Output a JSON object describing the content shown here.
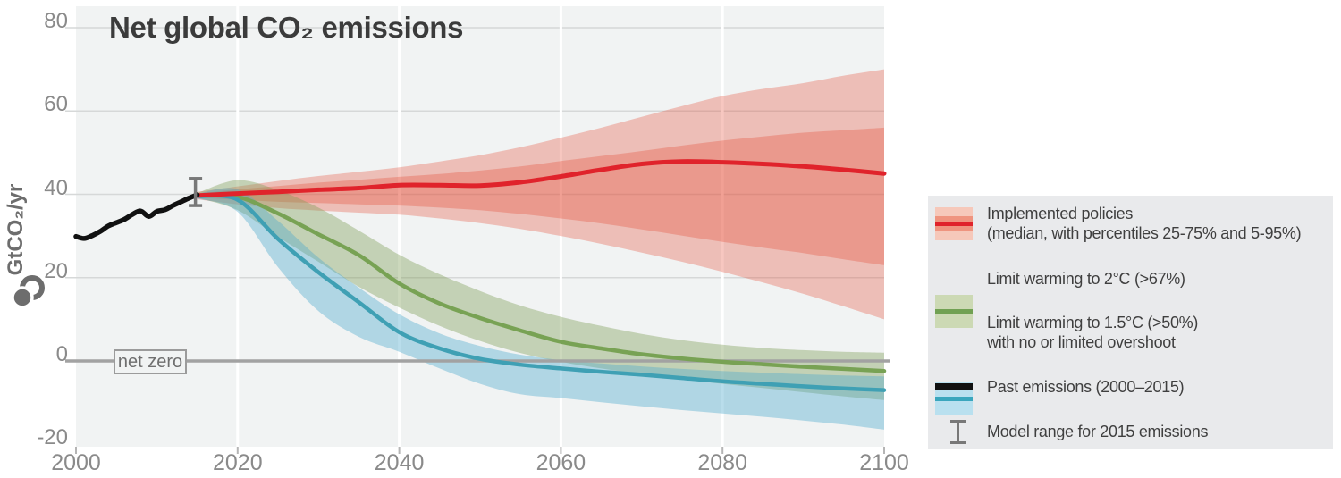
{
  "title": "Net global CO₂ emissions",
  "axes": {
    "y_label": "GtCO₂/yr",
    "y_ticks": [
      80,
      60,
      40,
      20,
      0,
      -20
    ],
    "x_ticks": [
      2000,
      2020,
      2040,
      2060,
      2080,
      2100
    ],
    "net_zero_label": "net zero"
  },
  "colors": {
    "plot_background": "#f1f3f3",
    "legend_background": "#e9eaec",
    "red_line": "#e0232b",
    "red_band": "rgba(228,70,45,0.30)",
    "green_line": "#78a254",
    "green_band": "rgba(128,158,88,0.40)",
    "blue_line": "#3fa0b4",
    "blue_band": "rgba(80,170,205,0.40)",
    "past_line": "#111111",
    "zero_line": "#a2a2a2",
    "h_grid": "#d6d8d8",
    "v_grid": "#ffffff",
    "error_bar": "#787878"
  },
  "legend": {
    "items": [
      {
        "type": "red-band",
        "line1": "Implemented policies",
        "line2": "(median, with percentiles 25-75% and 5-95%)"
      },
      {
        "type": "green-band",
        "line1": "Limit warming to 2°C (>67%)",
        "line2": ""
      },
      {
        "type": "blue-band",
        "line1": "Limit warming to 1.5°C (>50%)",
        "line2": "with no or limited overshoot"
      },
      {
        "type": "black-line",
        "line1": "Past emissions (2000–2015)",
        "line2": ""
      },
      {
        "type": "error-bar",
        "line1": "Model range for 2015 emissions",
        "line2": ""
      }
    ]
  },
  "chart_data": {
    "type": "area",
    "title": "Net global CO₂ emissions",
    "xlabel": "",
    "ylabel": "GtCO₂/yr",
    "xlim": [
      2000,
      2100
    ],
    "ylim": [
      -21,
      85
    ],
    "x_ticks": [
      2000,
      2020,
      2040,
      2060,
      2080,
      2100
    ],
    "y_ticks": [
      80,
      60,
      40,
      20,
      0,
      -20
    ],
    "grid": "horizontal gray lines, vertical white lines",
    "net_zero_line": 0,
    "past_emissions": {
      "name": "Past emissions (2000–2015)",
      "x": [
        2000,
        2001,
        2002,
        2003,
        2004,
        2005,
        2006,
        2007,
        2008,
        2009,
        2010,
        2011,
        2012,
        2013,
        2014,
        2015
      ],
      "y": [
        29.9,
        29.4,
        30.1,
        31.1,
        32.4,
        33.2,
        34.0,
        35.2,
        36.0,
        34.7,
        35.9,
        36.3,
        37.3,
        38.2,
        39.1,
        39.9
      ]
    },
    "model_range_2015": {
      "x": 2015,
      "low": 37.3,
      "high": 43.8
    },
    "scenario_years": [
      2015,
      2020,
      2025,
      2030,
      2035,
      2040,
      2045,
      2050,
      2055,
      2060,
      2065,
      2070,
      2075,
      2080,
      2085,
      2090,
      2095,
      2100
    ],
    "scenarios": [
      {
        "name": "Implemented policies (median, with percentiles 25-75% and 5-95%)",
        "color": "#e0232b",
        "median": [
          39.7,
          40.2,
          40.6,
          41.1,
          41.5,
          42.2,
          42.2,
          42.1,
          42.9,
          44.3,
          45.9,
          47.3,
          47.9,
          47.7,
          47.3,
          46.7,
          45.9,
          45.0
        ],
        "p25": [
          39.2,
          38.7,
          38.2,
          37.9,
          37.6,
          37.3,
          36.8,
          36.2,
          35.3,
          34.2,
          33.0,
          31.6,
          30.1,
          28.6,
          27.2,
          25.9,
          24.4,
          23.0
        ],
        "p75": [
          40.2,
          41.2,
          42.0,
          42.8,
          43.5,
          44.2,
          44.9,
          45.7,
          46.7,
          48.0,
          49.2,
          50.4,
          51.7,
          52.9,
          53.9,
          54.8,
          55.4,
          56.0
        ],
        "p5": [
          38.8,
          37.6,
          36.7,
          36.1,
          35.6,
          35.1,
          34.2,
          33.1,
          31.7,
          30.0,
          28.1,
          26.0,
          23.8,
          21.4,
          18.8,
          16.1,
          13.1,
          10.0
        ],
        "p95": [
          40.6,
          41.9,
          43.2,
          44.4,
          45.4,
          46.5,
          47.9,
          49.4,
          51.3,
          53.6,
          56.0,
          58.6,
          61.2,
          63.6,
          65.3,
          66.7,
          68.5,
          70.0
        ]
      },
      {
        "name": "Limit warming to 2°C (>67%)",
        "color": "#78a254",
        "median": [
          39.7,
          39.4,
          35.4,
          30.4,
          25.4,
          18.6,
          13.8,
          10.3,
          7.3,
          4.6,
          3.0,
          1.6,
          0.6,
          -0.2,
          -0.8,
          -1.4,
          -1.9,
          -2.4
        ],
        "upper": [
          40.3,
          43.4,
          41.0,
          36.8,
          31.3,
          25.5,
          20.8,
          16.8,
          13.3,
          10.6,
          8.4,
          6.5,
          5.0,
          3.9,
          3.1,
          2.6,
          2.2,
          2.0
        ],
        "lower": [
          39.2,
          36.2,
          29.8,
          23.8,
          17.8,
          12.8,
          8.4,
          4.8,
          1.9,
          -0.2,
          -1.8,
          -3.2,
          -4.4,
          -5.5,
          -6.5,
          -7.5,
          -8.5,
          -9.4
        ]
      },
      {
        "name": "Limit warming to 1.5°C (>50%) with no or limited overshoot",
        "color": "#3fa0b4",
        "median": [
          39.6,
          38.7,
          29.3,
          21.3,
          14.1,
          6.9,
          3.0,
          0.5,
          -0.9,
          -1.8,
          -2.6,
          -3.3,
          -4.1,
          -4.9,
          -5.5,
          -6.1,
          -6.6,
          -7.0
        ],
        "upper": [
          40.1,
          41.2,
          33.6,
          24.8,
          17.6,
          11.2,
          6.6,
          3.6,
          1.5,
          0.2,
          -0.6,
          -1.3,
          -1.9,
          -2.4,
          -2.8,
          -3.2,
          -3.5,
          -3.7
        ],
        "lower": [
          39.0,
          35.8,
          22.5,
          12.0,
          5.8,
          2.2,
          -1.8,
          -5.5,
          -8.0,
          -8.9,
          -9.9,
          -10.9,
          -11.8,
          -12.6,
          -13.4,
          -14.3,
          -15.3,
          -16.5
        ]
      }
    ]
  }
}
